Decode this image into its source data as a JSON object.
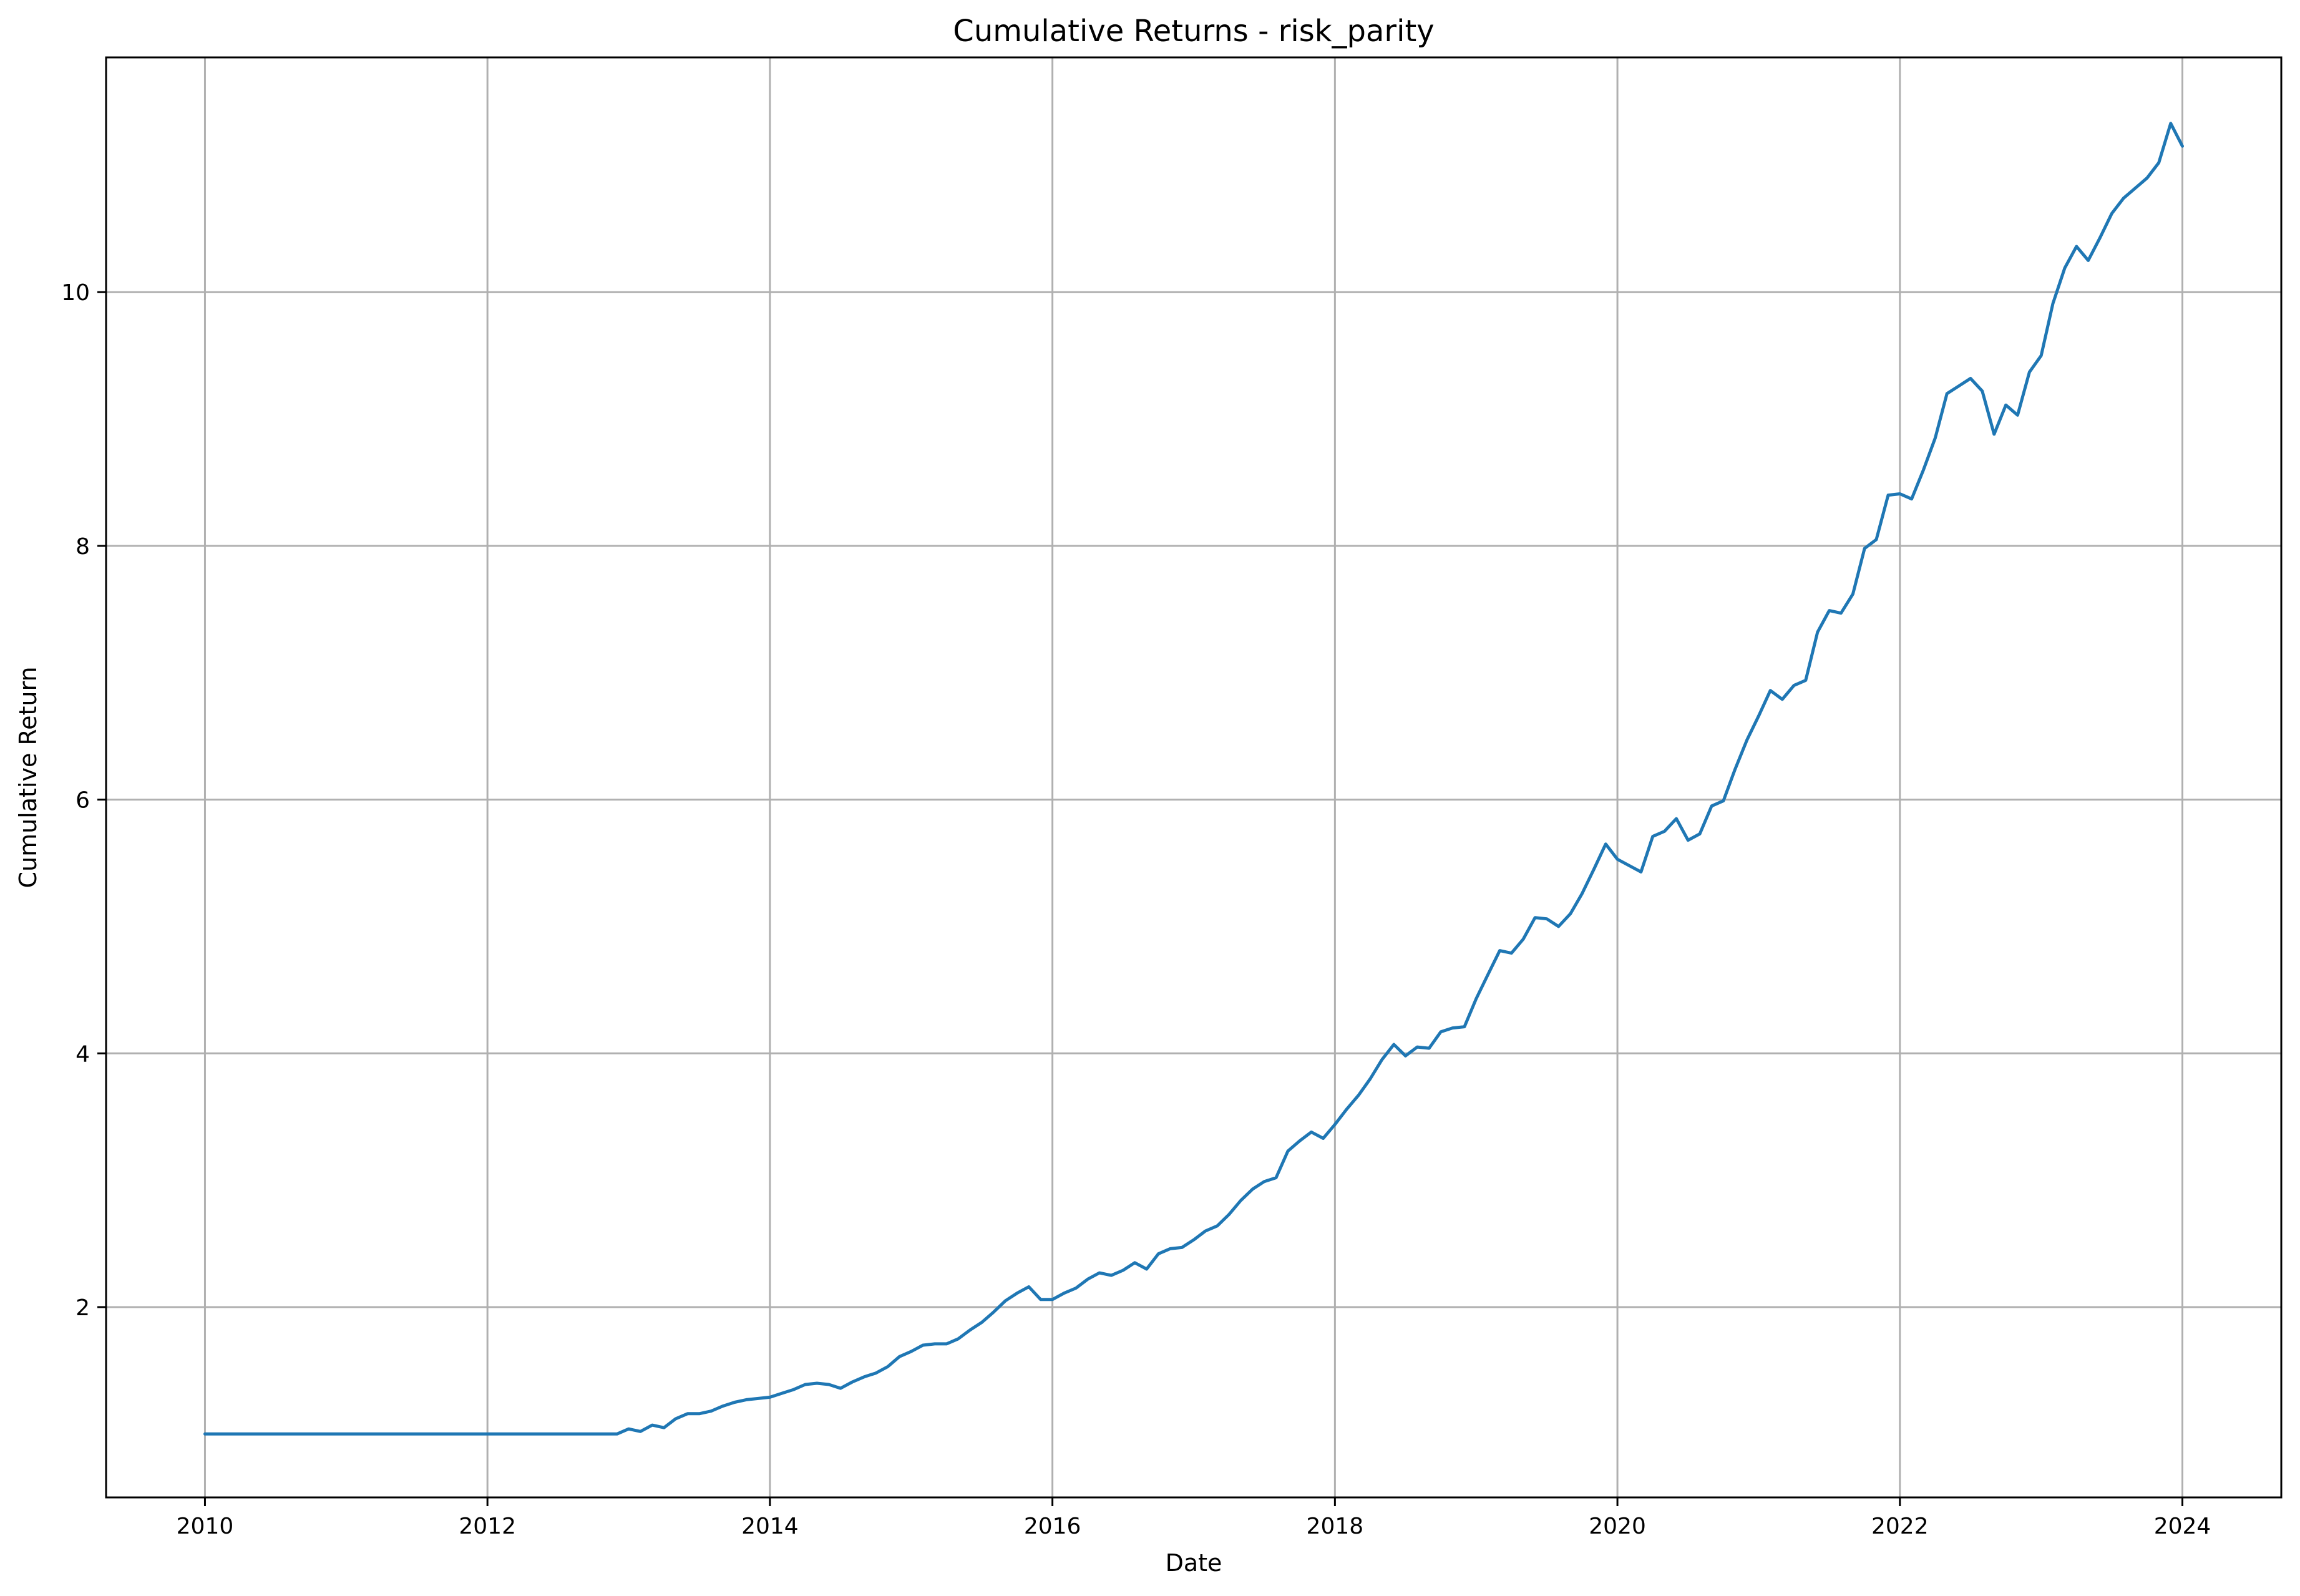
{
  "chart_data": {
    "type": "line",
    "title": "Cumulative Returns - risk_parity",
    "xlabel": "Date",
    "ylabel": "Cumulative Return",
    "xlim": [
      2009.3,
      2024.7
    ],
    "ylim": [
      0.5,
      11.85
    ],
    "grid": true,
    "legend": "none",
    "x_ticks": [
      {
        "value": 2010,
        "label": "2010"
      },
      {
        "value": 2012,
        "label": "2012"
      },
      {
        "value": 2014,
        "label": "2014"
      },
      {
        "value": 2016,
        "label": "2016"
      },
      {
        "value": 2018,
        "label": "2018"
      },
      {
        "value": 2020,
        "label": "2020"
      },
      {
        "value": 2022,
        "label": "2022"
      },
      {
        "value": 2024,
        "label": "2024"
      }
    ],
    "y_ticks": [
      {
        "value": 2,
        "label": "2"
      },
      {
        "value": 4,
        "label": "4"
      },
      {
        "value": 6,
        "label": "6"
      },
      {
        "value": 8,
        "label": "8"
      },
      {
        "value": 10,
        "label": "10"
      }
    ],
    "colors": {
      "series": "#1f77b4",
      "grid": "#b0b0b0",
      "axis": "#000000"
    },
    "series": [
      {
        "name": "risk_parity",
        "x": [
          2010.0,
          2012.917,
          2013.0,
          2013.083,
          2013.167,
          2013.25,
          2013.333,
          2013.417,
          2013.5,
          2013.583,
          2013.667,
          2013.75,
          2013.833,
          2013.917,
          2014.0,
          2014.083,
          2014.167,
          2014.25,
          2014.333,
          2014.417,
          2014.5,
          2014.583,
          2014.667,
          2014.75,
          2014.833,
          2014.917,
          2015.0,
          2015.083,
          2015.167,
          2015.25,
          2015.333,
          2015.417,
          2015.5,
          2015.583,
          2015.667,
          2015.75,
          2015.833,
          2015.917,
          2016.0,
          2016.083,
          2016.167,
          2016.25,
          2016.333,
          2016.417,
          2016.5,
          2016.583,
          2016.667,
          2016.75,
          2016.833,
          2016.917,
          2017.0,
          2017.083,
          2017.167,
          2017.25,
          2017.333,
          2017.417,
          2017.5,
          2017.583,
          2017.667,
          2017.75,
          2017.833,
          2017.917,
          2018.0,
          2018.083,
          2018.167,
          2018.25,
          2018.333,
          2018.417,
          2018.5,
          2018.583,
          2018.667,
          2018.75,
          2018.833,
          2018.917,
          2019.0,
          2019.083,
          2019.167,
          2019.25,
          2019.333,
          2019.417,
          2019.5,
          2019.583,
          2019.667,
          2019.75,
          2019.833,
          2019.917,
          2020.0,
          2020.083,
          2020.167,
          2020.25,
          2020.333,
          2020.417,
          2020.5,
          2020.583,
          2020.667,
          2020.75,
          2020.833,
          2020.917,
          2021.0,
          2021.083,
          2021.167,
          2021.25,
          2021.333,
          2021.417,
          2021.5,
          2021.583,
          2021.667,
          2021.75,
          2021.833,
          2021.917,
          2022.0,
          2022.083,
          2022.167,
          2022.25,
          2022.333,
          2022.417,
          2022.5,
          2022.583,
          2022.667,
          2022.75,
          2022.833,
          2022.917,
          2023.0,
          2023.083,
          2023.167,
          2023.25,
          2023.333,
          2023.417,
          2023.5,
          2023.583,
          2023.667,
          2023.75,
          2023.833,
          2023.917,
          2024.0
        ],
        "y": [
          1.0,
          1.0,
          1.04,
          1.02,
          1.07,
          1.05,
          1.12,
          1.16,
          1.16,
          1.18,
          1.22,
          1.25,
          1.27,
          1.28,
          1.29,
          1.32,
          1.35,
          1.39,
          1.4,
          1.39,
          1.36,
          1.41,
          1.45,
          1.48,
          1.53,
          1.61,
          1.65,
          1.7,
          1.71,
          1.71,
          1.75,
          1.82,
          1.88,
          1.96,
          2.05,
          2.11,
          2.16,
          2.06,
          2.06,
          2.11,
          2.15,
          2.22,
          2.27,
          2.25,
          2.29,
          2.35,
          2.3,
          2.42,
          2.46,
          2.47,
          2.53,
          2.6,
          2.64,
          2.73,
          2.84,
          2.93,
          2.99,
          3.02,
          3.23,
          3.31,
          3.38,
          3.33,
          3.44,
          3.56,
          3.67,
          3.8,
          3.95,
          4.07,
          3.98,
          4.05,
          4.04,
          4.17,
          4.2,
          4.21,
          4.43,
          4.62,
          4.81,
          4.79,
          4.9,
          5.07,
          5.06,
          5.0,
          5.1,
          5.26,
          5.45,
          5.65,
          5.53,
          5.48,
          5.43,
          5.71,
          5.75,
          5.85,
          5.68,
          5.73,
          5.95,
          5.99,
          6.24,
          6.47,
          6.66,
          6.86,
          6.79,
          6.9,
          6.94,
          7.32,
          7.49,
          7.47,
          7.62,
          7.98,
          8.05,
          8.4,
          8.41,
          8.37,
          8.6,
          8.85,
          9.2,
          9.26,
          9.32,
          9.22,
          8.88,
          9.11,
          9.03,
          9.37,
          9.5,
          9.91,
          10.19,
          10.36,
          10.25,
          10.43,
          10.62,
          10.74,
          10.82,
          10.9,
          11.02,
          11.33,
          11.15
        ]
      }
    ]
  }
}
